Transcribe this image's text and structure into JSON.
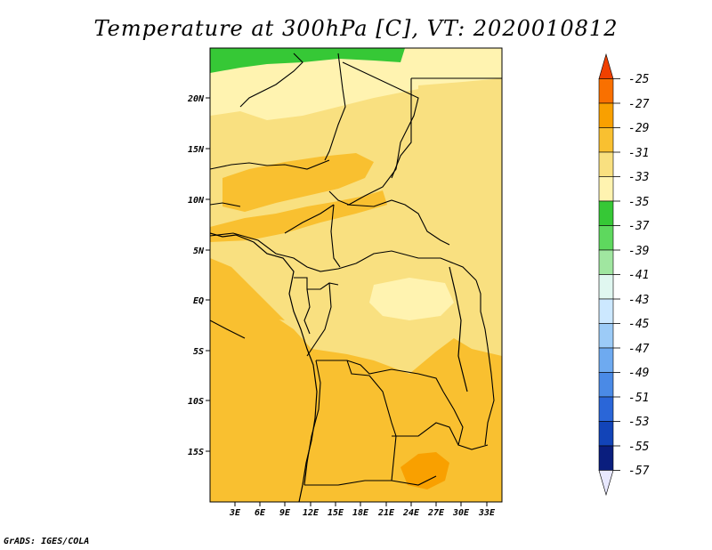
{
  "title": "Temperature at 300hPa [C], VT: 2020010812",
  "footer": "GrADS: IGES/COLA",
  "map": {
    "lon_labels": [
      "3E",
      "6E",
      "9E",
      "12E",
      "15E",
      "18E",
      "21E",
      "24E",
      "27E",
      "30E",
      "33E"
    ],
    "lat_labels": [
      "20N",
      "15N",
      "10N",
      "5N",
      "EQ",
      "5S",
      "10S",
      "15S"
    ]
  },
  "colorbar": {
    "levels": [
      "-25",
      "-27",
      "-29",
      "-31",
      "-33",
      "-35",
      "-37",
      "-39",
      "-41",
      "-43",
      "-45",
      "-47",
      "-49",
      "-51",
      "-53",
      "-55",
      "-57"
    ],
    "colors": [
      "#f04000",
      "#f97000",
      "#f9a000",
      "#f9c030",
      "#f9e080",
      "#fff3b0",
      "#36c836",
      "#5ed85e",
      "#a0e6a0",
      "#e0f7f0",
      "#cce8ff",
      "#9ccbf7",
      "#6eaaf0",
      "#4a8ae6",
      "#2a66d8",
      "#1244b8",
      "#0a1e7e",
      "#e8e8ff"
    ]
  }
}
